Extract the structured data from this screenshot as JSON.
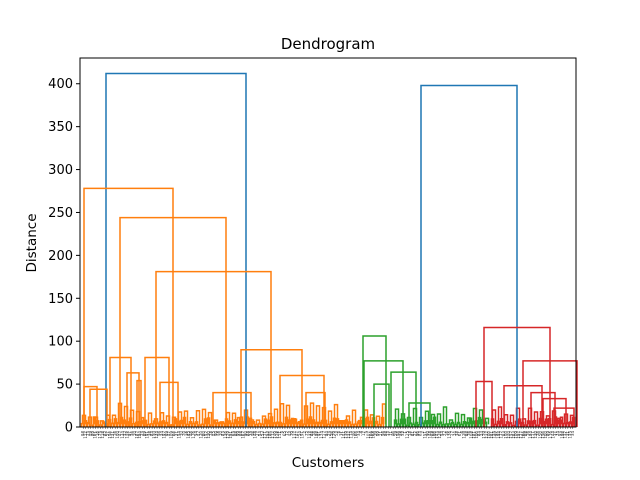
{
  "chart_data": {
    "type": "dendrogram",
    "title": "Dendrogram",
    "xlabel": "Customers",
    "ylabel": "Distance",
    "ylim": [
      0,
      430
    ],
    "yticks": [
      0,
      50,
      100,
      150,
      200,
      250,
      300,
      350,
      400
    ],
    "leaf_count": 200,
    "colors": {
      "cluster_orange": "#ff7f0e",
      "cluster_green": "#2ca02c",
      "cluster_red": "#d62728",
      "root_blue": "#1f77b4"
    },
    "clusters": [
      {
        "name": "orange",
        "leaf_range": [
          0,
          116
        ],
        "top_height": 278
      },
      {
        "name": "green",
        "leaf_range": [
          117,
          163
        ],
        "top_height": 106
      },
      {
        "name": "red",
        "leaf_range": [
          164,
          199
        ],
        "top_height": 116
      }
    ],
    "links": [
      {
        "xl": 26.0,
        "xr": 166.0,
        "h": 412,
        "c": "root_blue"
      },
      {
        "xl": 341.0,
        "xr": 437.0,
        "h": 398,
        "c": "root_blue"
      },
      {
        "xl": 4.0,
        "xr": 93.0,
        "h": 278,
        "c": "cluster_orange"
      },
      {
        "xl": 40.0,
        "xr": 146.0,
        "h": 244,
        "c": "cluster_orange"
      },
      {
        "xl": 76.0,
        "xr": 191.0,
        "h": 181,
        "c": "cluster_orange"
      },
      {
        "xl": 4.0,
        "xr": 17.0,
        "h": 47,
        "c": "cluster_orange"
      },
      {
        "xl": 10.0,
        "xr": 27.0,
        "h": 44,
        "c": "cluster_orange"
      },
      {
        "xl": 30.0,
        "xr": 51.0,
        "h": 81,
        "c": "cluster_orange"
      },
      {
        "xl": 47.0,
        "xr": 59.0,
        "h": 63,
        "c": "cluster_orange"
      },
      {
        "xl": 57.0,
        "xr": 61.0,
        "h": 54,
        "c": "cluster_orange"
      },
      {
        "xl": 65.0,
        "xr": 89.0,
        "h": 81,
        "c": "cluster_orange"
      },
      {
        "xl": 80.0,
        "xr": 98.0,
        "h": 52,
        "c": "cluster_orange"
      },
      {
        "xl": 161.0,
        "xr": 222.0,
        "h": 90,
        "c": "cluster_orange"
      },
      {
        "xl": 133.0,
        "xr": 171.0,
        "h": 40,
        "c": "cluster_orange"
      },
      {
        "xl": 200.0,
        "xr": 244.0,
        "h": 60,
        "c": "cluster_orange"
      },
      {
        "xl": 226.0,
        "xr": 245.0,
        "h": 40,
        "c": "cluster_orange"
      },
      {
        "xl": 283.0,
        "xr": 306.0,
        "h": 106,
        "c": "cluster_green"
      },
      {
        "xl": 284.0,
        "xr": 323.0,
        "h": 77,
        "c": "cluster_green"
      },
      {
        "xl": 311.0,
        "xr": 336.0,
        "h": 64,
        "c": "cluster_green"
      },
      {
        "xl": 294.0,
        "xr": 309.0,
        "h": 50,
        "c": "cluster_green"
      },
      {
        "xl": 329.0,
        "xr": 350.0,
        "h": 28,
        "c": "cluster_green"
      },
      {
        "xl": 404.0,
        "xr": 470.0,
        "h": 116,
        "c": "cluster_red"
      },
      {
        "xl": 396.0,
        "xr": 412.0,
        "h": 53,
        "c": "cluster_red"
      },
      {
        "xl": 443.0,
        "xr": 497.0,
        "h": 77,
        "c": "cluster_red"
      },
      {
        "xl": 424.0,
        "xr": 462.0,
        "h": 48,
        "c": "cluster_red"
      },
      {
        "xl": 451.0,
        "xr": 475.0,
        "h": 40,
        "c": "cluster_red"
      },
      {
        "xl": 463.0,
        "xr": 486.0,
        "h": 33,
        "c": "cluster_red"
      },
      {
        "xl": 474.0,
        "xr": 494.0,
        "h": 22,
        "c": "cluster_red"
      }
    ]
  }
}
